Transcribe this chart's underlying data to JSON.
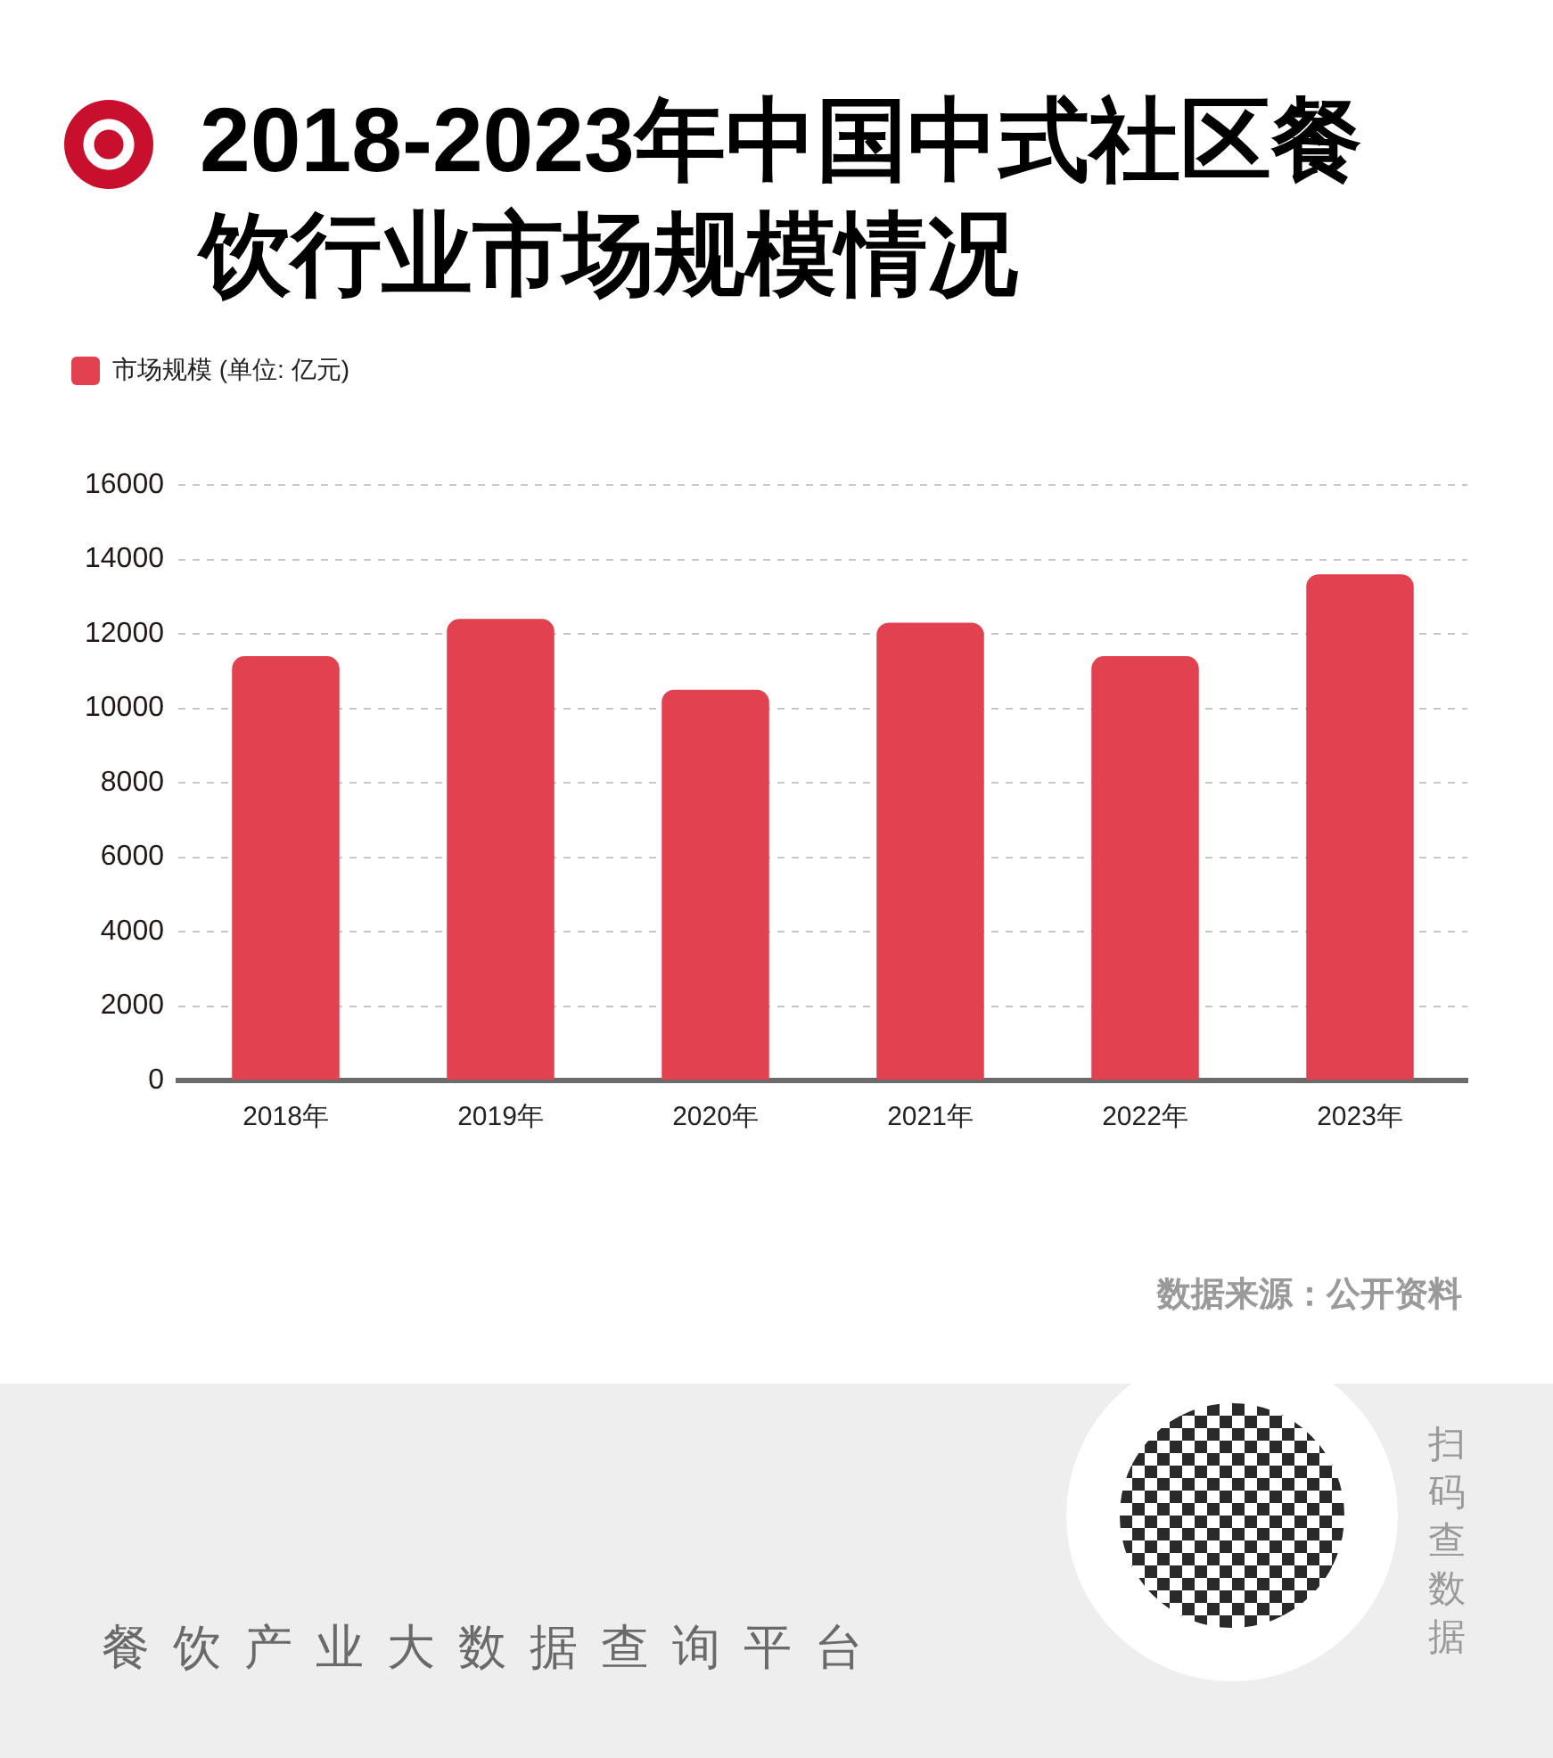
{
  "chart_data": {
    "type": "bar",
    "title": "2018-2023年中国中式社区餐饮行业市场规模情况",
    "categories": [
      "2018年",
      "2019年",
      "2020年",
      "2021年",
      "2022年",
      "2023年"
    ],
    "series": [
      {
        "name": "市场规模 (单位: 亿元)",
        "color": "#e2414f",
        "values": [
          11400,
          12400,
          10500,
          12300,
          11400,
          13600
        ]
      }
    ],
    "ylim": [
      0,
      16000
    ],
    "yticks": [
      0,
      2000,
      4000,
      6000,
      8000,
      10000,
      12000,
      14000,
      16000
    ],
    "grid": "y",
    "legend": "top left",
    "annotations": [
      "数据来源：公开资料",
      "餐饮产业大数据查询平台",
      "扫码查数据"
    ]
  }
}
